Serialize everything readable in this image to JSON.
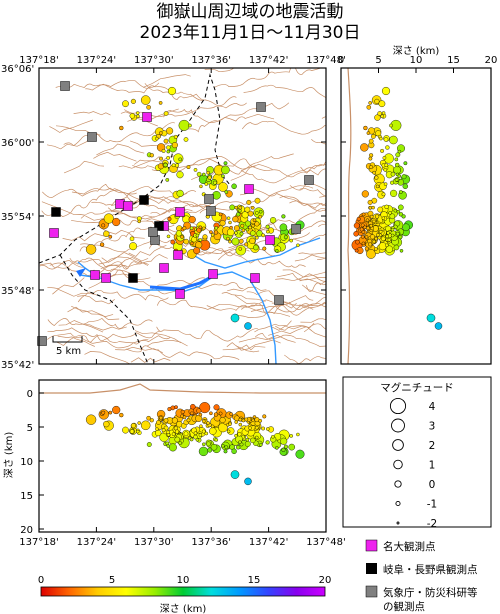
{
  "title_line1": "御嶽山周辺域の地震活動",
  "title_line2": "2023年11月1日〜11月30日",
  "lon_ticks": [
    "137°18'",
    "137°24'",
    "137°30'",
    "137°36'",
    "137°42'",
    "137°48'"
  ],
  "lat_ticks": [
    "36°06'",
    "36°00'",
    "35°54'",
    "35°48'",
    "35°42'"
  ],
  "depth_axis_label": "深さ (km)",
  "depth_ticks_top": [
    "0",
    "5",
    "10",
    "15",
    "20"
  ],
  "section_depth_label": "深さ (km)",
  "section_depth_ticks": [
    "0",
    "5",
    "10",
    "15",
    "20"
  ],
  "scale_bar_label": "5 km",
  "magnitude_legend": {
    "title": "マグニチュード",
    "values": [
      "4",
      "3",
      "2",
      "1",
      "0",
      "-1",
      "-2"
    ]
  },
  "station_legend": [
    {
      "label": "名大観測点",
      "color": "#ee22ee"
    },
    {
      "label": "岐阜・長野県観測点",
      "color": "#000000"
    },
    {
      "label": "気象庁・防災科研等",
      "color": "#808080"
    },
    {
      "label": "の観測点",
      "color": ""
    }
  ],
  "colorbar": {
    "ticks": [
      "0",
      "5",
      "10",
      "15",
      "20"
    ],
    "label": "深さ (km)",
    "colors": [
      "#dd0000",
      "#ff6600",
      "#ffcc00",
      "#ffff00",
      "#99ee00",
      "#00cc33",
      "#00dddd",
      "#0099ff",
      "#3344ff",
      "#8800ee",
      "#cc00ff"
    ]
  },
  "chart_data": {
    "type": "scatter",
    "map_lon_range": [
      "137°18'",
      "137°48'"
    ],
    "map_lat_range": [
      "35°42'",
      "36°06'"
    ],
    "depth_range_km": [
      0,
      20
    ],
    "magnitude_range": [
      -2,
      4
    ],
    "events_note": "Hypocenters colored by depth (km), sized by magnitude"
  }
}
